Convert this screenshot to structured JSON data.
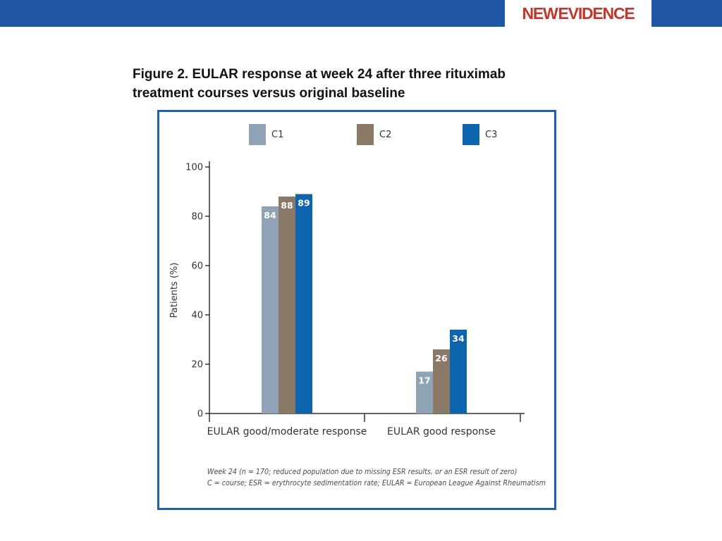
{
  "header": {
    "logo_part_a": "NEW",
    "logo_part_b": "EVIDENCE",
    "bar_color": "#1f57a4",
    "logo_color": "#c2362b"
  },
  "figure": {
    "title": "Figure 2. EULAR response at week 24 after three rituximab\ntreatment courses versus original baseline",
    "footnote_line1": "Week 24 (n = 170; reduced population due to missing ESR results, or an ESR result of zero)",
    "footnote_line2": "C = course; ESR = erythrocyte sedimentation rate; EULAR = European League Against Rheumatism",
    "frame_color": "#1d61ad"
  },
  "chart_data": {
    "type": "bar",
    "title": "",
    "xlabel": "",
    "ylabel": "Patients (%)",
    "ylim": [
      0,
      100
    ],
    "yticks": [
      0,
      20,
      40,
      60,
      80,
      100
    ],
    "categories": [
      "EULAR good/moderate response",
      "EULAR good response"
    ],
    "series": [
      {
        "name": "C1",
        "color": "#8fa2b6",
        "values": [
          84,
          17
        ]
      },
      {
        "name": "C2",
        "color": "#8b7968",
        "values": [
          88,
          26
        ]
      },
      {
        "name": "C3",
        "color": "#0f64ae",
        "values": [
          89,
          34
        ]
      }
    ],
    "show_data_labels": true,
    "legend_position": "top",
    "grid": false
  }
}
